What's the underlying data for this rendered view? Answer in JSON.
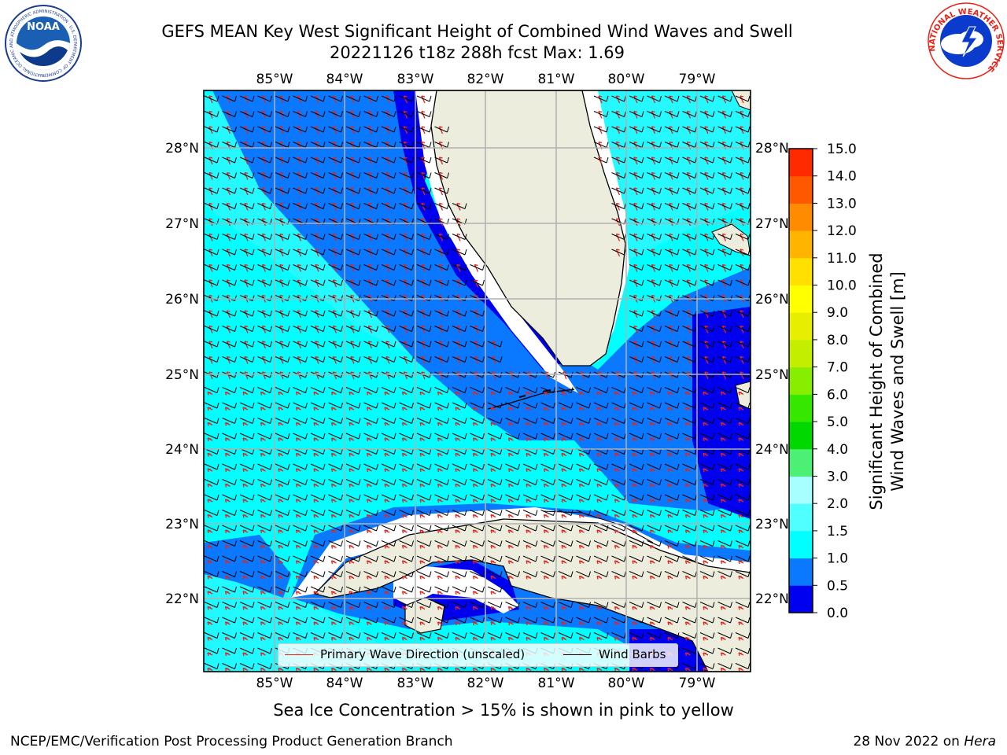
{
  "title": {
    "line1": "GEFS MEAN Key West Significant Height of Combined Wind Waves and Swell",
    "line2": "20221126 t18z 288h fcst   Max: 1.69"
  },
  "axes": {
    "lon_labels": [
      "85°W",
      "84°W",
      "83°W",
      "82°W",
      "81°W",
      "80°W",
      "79°W"
    ],
    "lat_labels": [
      "28°N",
      "27°N",
      "26°N",
      "25°N",
      "24°N",
      "23°N",
      "22°N"
    ]
  },
  "legend": {
    "items": [
      {
        "label": "Primary Wave Direction (unscaled)",
        "color": "#e8231a"
      },
      {
        "label": "Wind Barbs",
        "color": "#000000"
      }
    ]
  },
  "colorbar": {
    "label_line1": "Significant Height of Combined",
    "label_line2": "Wind Waves and Swell [m]",
    "ticks": [
      "0.0",
      "0.5",
      "1.0",
      "1.5",
      "2.0",
      "3.0",
      "4.0",
      "5.0",
      "6.0",
      "7.0",
      "8.0",
      "9.0",
      "10.0",
      "11.0",
      "12.0",
      "13.0",
      "14.0",
      "15.0"
    ],
    "colors": [
      "#0000f0",
      "#0a78ff",
      "#00ffff",
      "#50ffff",
      "#a8ffff",
      "#4cf074",
      "#00d800",
      "#36e800",
      "#88ee00",
      "#c4ee00",
      "#e8ee00",
      "#ffff00",
      "#ffe000",
      "#ffb400",
      "#ff8c00",
      "#ff5800",
      "#ff2a00"
    ]
  },
  "subtitle": "Sea Ice Concentration > 15% is shown in pink to yellow",
  "footer": {
    "left": "NCEP/EMC/Verification Post Processing Product Generation Branch",
    "right_prefix": "28 Nov 2022 on",
    "right_host": "Hera"
  },
  "logos": {
    "noaa_text": "NOAA",
    "noaa_ring": "NATIONAL OCEANIC AND ATMOSPHERIC ADMINISTRATION · U.S. DEPARTMENT OF COMMERCE",
    "nws_ring": "NATIONAL WEATHER SERVICE"
  }
}
